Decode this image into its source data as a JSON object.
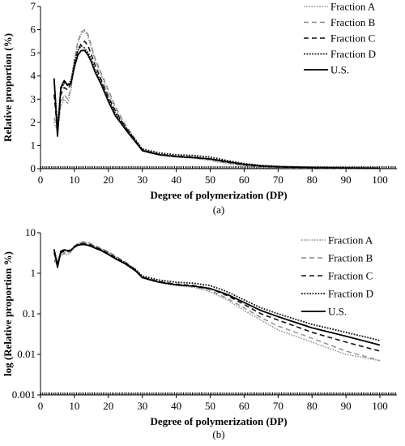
{
  "chart_data": [
    {
      "type": "line",
      "caption": "(a)",
      "xlabel": "Degree of polymerization (DP)",
      "ylabel": "Relative proportion (%)",
      "xlim": [
        0,
        105
      ],
      "ylim": [
        0,
        7
      ],
      "xticks": [
        "0",
        "10",
        "20",
        "30",
        "40",
        "50",
        "60",
        "70",
        "80",
        "90",
        "100"
      ],
      "yticks": [
        "0",
        "1",
        "2",
        "3",
        "4",
        "5",
        "6",
        "7"
      ],
      "x_scale": "linear",
      "y_scale": "linear",
      "grid": false,
      "legend_position": "top-right",
      "series": [
        {
          "name": "Fraction A",
          "style": "dotted-gray",
          "x": [
            4,
            5,
            6,
            7,
            8,
            9,
            10,
            11,
            12,
            13,
            14,
            15,
            16,
            18,
            20,
            22,
            25,
            28,
            30,
            32,
            35,
            40,
            45,
            50,
            55,
            60,
            65,
            70,
            80,
            90,
            100
          ],
          "y": [
            2.0,
            1.6,
            2.7,
            3.0,
            2.8,
            3.4,
            4.6,
            5.4,
            5.8,
            5.95,
            5.7,
            5.2,
            4.7,
            4.0,
            3.3,
            2.6,
            1.8,
            1.2,
            0.8,
            0.72,
            0.6,
            0.5,
            0.45,
            0.35,
            0.22,
            0.12,
            0.07,
            0.04,
            0.02,
            0.01,
            0.007
          ]
        },
        {
          "name": "Fraction B",
          "style": "dashed-gray",
          "x": [
            4,
            5,
            6,
            7,
            8,
            9,
            10,
            11,
            12,
            13,
            14,
            15,
            16,
            18,
            20,
            22,
            25,
            28,
            30,
            32,
            35,
            40,
            45,
            50,
            55,
            60,
            65,
            70,
            80,
            90,
            100
          ],
          "y": [
            2.2,
            1.7,
            2.8,
            3.2,
            3.0,
            3.5,
            4.7,
            5.5,
            5.9,
            6.0,
            5.8,
            5.3,
            4.8,
            4.1,
            3.4,
            2.7,
            1.9,
            1.25,
            0.82,
            0.74,
            0.62,
            0.52,
            0.47,
            0.38,
            0.24,
            0.14,
            0.08,
            0.05,
            0.025,
            0.012,
            0.007
          ]
        },
        {
          "name": "Fraction C",
          "style": "dashed-black",
          "x": [
            4,
            5,
            6,
            7,
            8,
            9,
            10,
            11,
            12,
            13,
            14,
            15,
            16,
            18,
            20,
            22,
            25,
            28,
            30,
            32,
            35,
            40,
            45,
            50,
            55,
            60,
            65,
            70,
            80,
            90,
            100
          ],
          "y": [
            3.2,
            1.6,
            3.2,
            3.5,
            3.4,
            3.7,
            4.5,
            5.1,
            5.4,
            5.5,
            5.3,
            4.9,
            4.5,
            3.8,
            3.1,
            2.5,
            1.8,
            1.2,
            0.8,
            0.72,
            0.62,
            0.54,
            0.5,
            0.42,
            0.28,
            0.17,
            0.1,
            0.07,
            0.035,
            0.02,
            0.012
          ]
        },
        {
          "name": "Fraction D",
          "style": "dotted-black",
          "x": [
            4,
            5,
            6,
            7,
            8,
            9,
            10,
            11,
            12,
            13,
            14,
            15,
            16,
            18,
            20,
            22,
            25,
            28,
            30,
            32,
            35,
            40,
            45,
            50,
            55,
            60,
            65,
            70,
            80,
            90,
            100
          ],
          "y": [
            3.8,
            1.8,
            3.4,
            3.7,
            3.6,
            3.8,
            4.6,
            5.1,
            5.3,
            5.2,
            5.0,
            4.7,
            4.3,
            3.7,
            3.0,
            2.4,
            1.8,
            1.25,
            0.85,
            0.78,
            0.68,
            0.6,
            0.57,
            0.5,
            0.35,
            0.22,
            0.14,
            0.1,
            0.055,
            0.035,
            0.022
          ]
        },
        {
          "name": "U.S.",
          "style": "solid-black",
          "x": [
            4,
            5,
            6,
            7,
            8,
            9,
            10,
            11,
            12,
            13,
            14,
            15,
            16,
            18,
            20,
            22,
            25,
            28,
            30,
            32,
            35,
            40,
            45,
            50,
            55,
            60,
            65,
            70,
            80,
            90,
            100
          ],
          "y": [
            3.9,
            1.4,
            3.5,
            3.8,
            3.6,
            3.7,
            4.4,
            4.9,
            5.1,
            5.1,
            4.9,
            4.6,
            4.2,
            3.6,
            2.9,
            2.3,
            1.7,
            1.15,
            0.78,
            0.7,
            0.6,
            0.52,
            0.48,
            0.42,
            0.3,
            0.19,
            0.12,
            0.085,
            0.045,
            0.028,
            0.017
          ]
        }
      ]
    },
    {
      "type": "line",
      "caption": "(b)",
      "xlabel": "Degree of polymerization (DP)",
      "ylabel": "log (Relative proportion %)",
      "xlim": [
        0,
        105
      ],
      "ylim": [
        0.001,
        10
      ],
      "xticks": [
        "0",
        "10",
        "20",
        "30",
        "40",
        "50",
        "60",
        "70",
        "80",
        "90",
        "100"
      ],
      "yticks": [
        "0.001",
        "0.01",
        "0.1",
        "1",
        "10"
      ],
      "x_scale": "linear",
      "y_scale": "log",
      "grid": false,
      "legend_position": "top-right",
      "series": [
        {
          "name": "Fraction A",
          "style": "dotted-gray",
          "x": [
            4,
            5,
            6,
            7,
            8,
            9,
            10,
            11,
            12,
            13,
            14,
            15,
            16,
            18,
            20,
            22,
            25,
            28,
            30,
            32,
            35,
            40,
            45,
            50,
            55,
            60,
            65,
            70,
            80,
            90,
            100
          ],
          "y": [
            2.0,
            1.6,
            2.7,
            3.0,
            2.8,
            3.4,
            4.6,
            5.4,
            5.8,
            5.95,
            5.7,
            5.2,
            4.7,
            4.0,
            3.3,
            2.6,
            1.8,
            1.2,
            0.8,
            0.72,
            0.6,
            0.5,
            0.45,
            0.35,
            0.22,
            0.12,
            0.07,
            0.04,
            0.02,
            0.01,
            0.007
          ]
        },
        {
          "name": "Fraction B",
          "style": "dashed-gray",
          "x": [
            4,
            5,
            6,
            7,
            8,
            9,
            10,
            11,
            12,
            13,
            14,
            15,
            16,
            18,
            20,
            22,
            25,
            28,
            30,
            32,
            35,
            40,
            45,
            50,
            55,
            60,
            65,
            70,
            80,
            90,
            100
          ],
          "y": [
            2.2,
            1.7,
            2.8,
            3.2,
            3.0,
            3.5,
            4.7,
            5.5,
            5.9,
            6.0,
            5.8,
            5.3,
            4.8,
            4.1,
            3.4,
            2.7,
            1.9,
            1.25,
            0.82,
            0.74,
            0.62,
            0.52,
            0.47,
            0.38,
            0.24,
            0.14,
            0.08,
            0.05,
            0.025,
            0.012,
            0.007
          ]
        },
        {
          "name": "Fraction C",
          "style": "dashed-black",
          "x": [
            4,
            5,
            6,
            7,
            8,
            9,
            10,
            11,
            12,
            13,
            14,
            15,
            16,
            18,
            20,
            22,
            25,
            28,
            30,
            32,
            35,
            40,
            45,
            50,
            55,
            60,
            65,
            70,
            80,
            90,
            100
          ],
          "y": [
            3.2,
            1.6,
            3.2,
            3.5,
            3.4,
            3.7,
            4.5,
            5.1,
            5.4,
            5.5,
            5.3,
            4.9,
            4.5,
            3.8,
            3.1,
            2.5,
            1.8,
            1.2,
            0.8,
            0.72,
            0.62,
            0.54,
            0.5,
            0.42,
            0.28,
            0.17,
            0.1,
            0.07,
            0.035,
            0.02,
            0.012
          ]
        },
        {
          "name": "Fraction D",
          "style": "dotted-black",
          "x": [
            4,
            5,
            6,
            7,
            8,
            9,
            10,
            11,
            12,
            13,
            14,
            15,
            16,
            18,
            20,
            22,
            25,
            28,
            30,
            32,
            35,
            40,
            45,
            50,
            55,
            60,
            65,
            70,
            80,
            90,
            100
          ],
          "y": [
            3.8,
            1.8,
            3.4,
            3.7,
            3.6,
            3.8,
            4.6,
            5.1,
            5.3,
            5.2,
            5.0,
            4.7,
            4.3,
            3.7,
            3.0,
            2.4,
            1.8,
            1.25,
            0.85,
            0.78,
            0.68,
            0.6,
            0.57,
            0.5,
            0.35,
            0.22,
            0.14,
            0.1,
            0.055,
            0.035,
            0.022
          ]
        },
        {
          "name": "U.S.",
          "style": "solid-black",
          "x": [
            4,
            5,
            6,
            7,
            8,
            9,
            10,
            11,
            12,
            13,
            14,
            15,
            16,
            18,
            20,
            22,
            25,
            28,
            30,
            32,
            35,
            40,
            45,
            50,
            55,
            60,
            65,
            70,
            80,
            90,
            100
          ],
          "y": [
            3.9,
            1.4,
            3.5,
            3.8,
            3.6,
            3.7,
            4.4,
            4.9,
            5.1,
            5.1,
            4.9,
            4.6,
            4.2,
            3.6,
            2.9,
            2.3,
            1.7,
            1.15,
            0.78,
            0.7,
            0.6,
            0.52,
            0.48,
            0.42,
            0.3,
            0.19,
            0.12,
            0.085,
            0.045,
            0.028,
            0.017
          ]
        }
      ]
    }
  ]
}
